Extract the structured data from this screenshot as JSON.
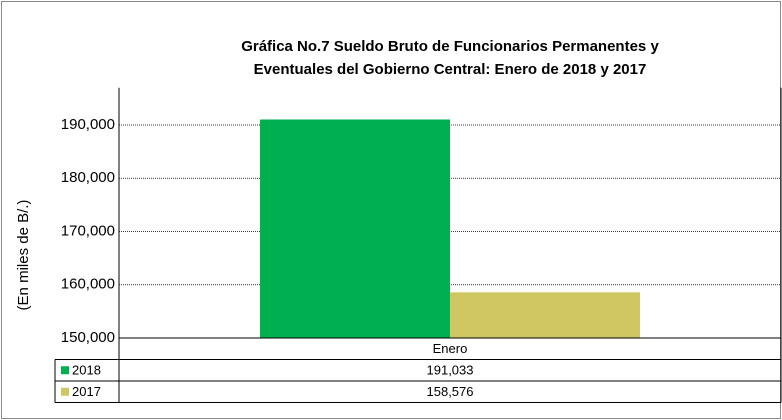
{
  "chart_data": {
    "type": "bar",
    "title": [
      "Gráfica No.7 Sueldo Bruto de Funcionarios Permanentes y",
      "Eventuales del Gobierno Central: Enero de 2018 y 2017"
    ],
    "y_label": "(En miles de B/.)",
    "categories": [
      "Enero"
    ],
    "series": [
      {
        "name": "2018",
        "color": "#00b050",
        "values": [
          191033
        ],
        "value_labels": [
          "191,033"
        ]
      },
      {
        "name": "2017",
        "color": "#cfc862",
        "values": [
          158576
        ],
        "value_labels": [
          "158,576"
        ]
      }
    ],
    "ylim": [
      150000,
      197000
    ],
    "yticks": [
      {
        "value": 150000,
        "label": "150,000"
      },
      {
        "value": 160000,
        "label": "160,000"
      },
      {
        "value": 170000,
        "label": "170,000"
      },
      {
        "value": 180000,
        "label": "180,000"
      },
      {
        "value": 190000,
        "label": "190,000"
      }
    ],
    "grid": true
  }
}
